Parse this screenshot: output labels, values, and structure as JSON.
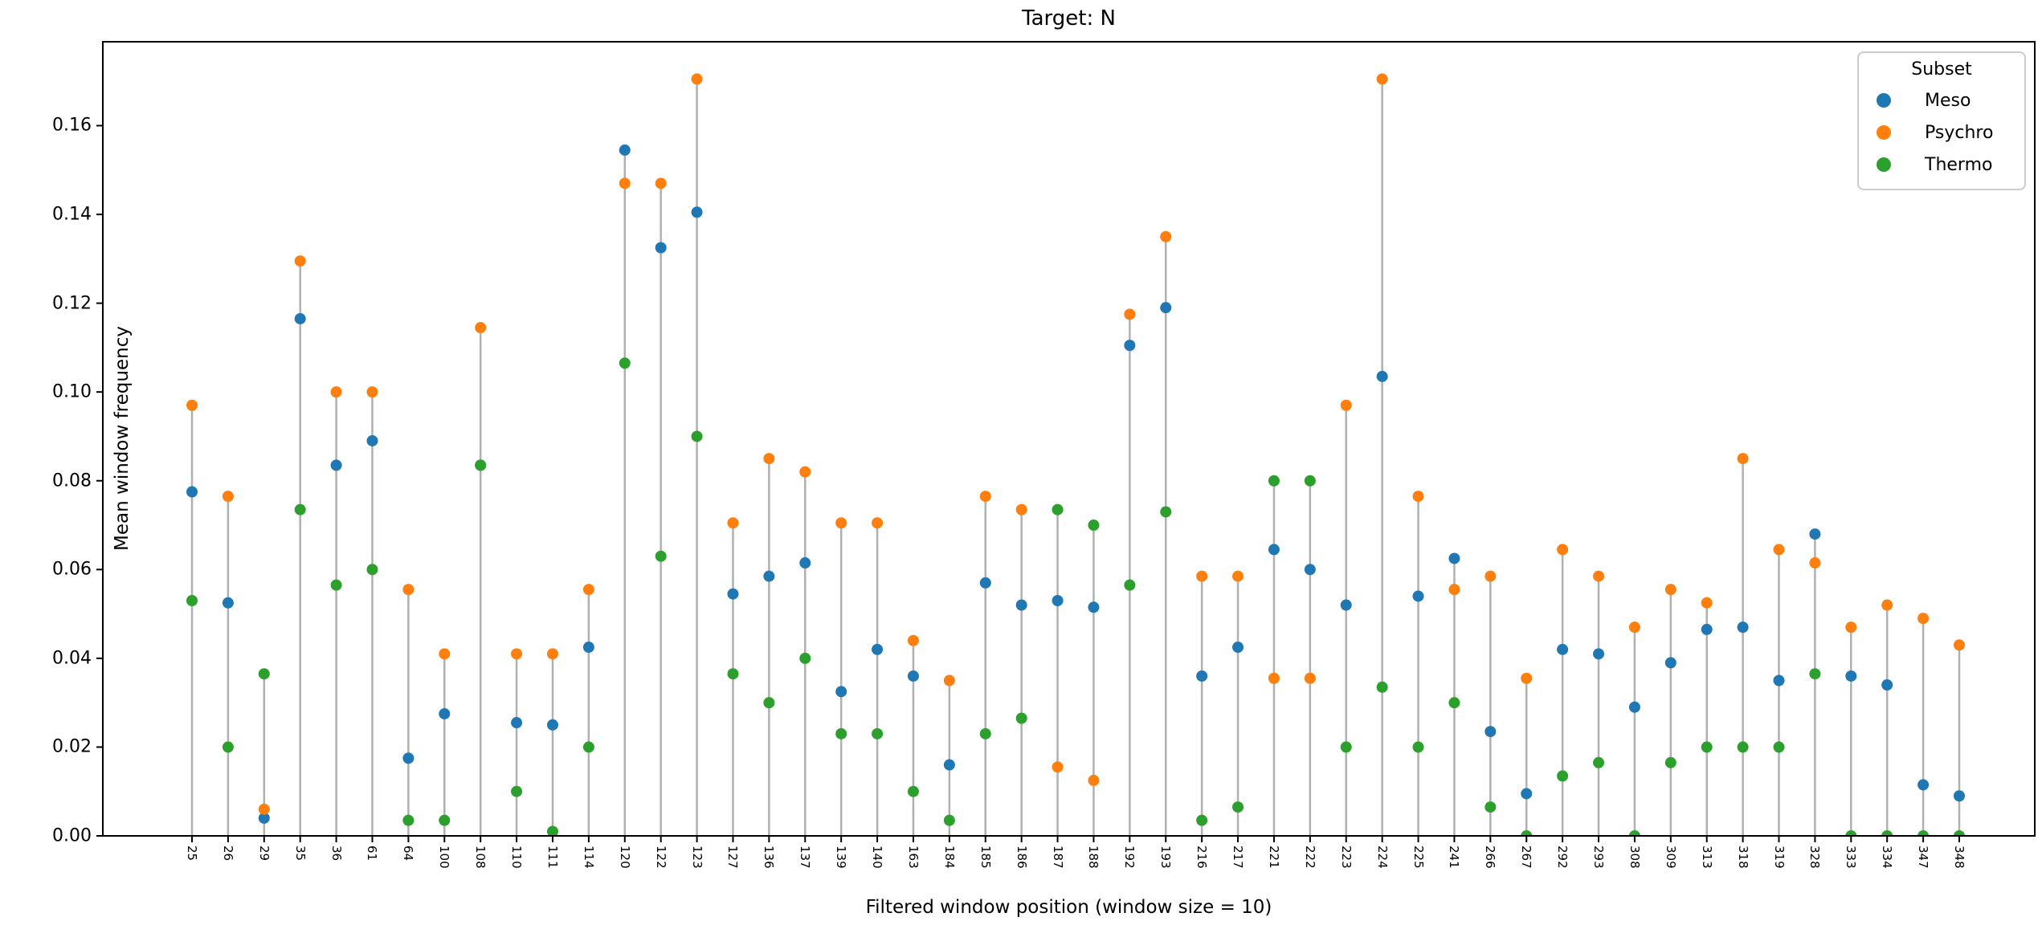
{
  "chart_data": {
    "type": "scatter",
    "subtype": "stem-plot",
    "title": "Target: N",
    "xlabel": "Filtered window position (window size = 10)",
    "ylabel": "Mean window frequency",
    "legend": {
      "title": "Subset",
      "position": "upper right"
    },
    "grid": false,
    "ylim": [
      0,
      0.1789
    ],
    "yticks": [
      0.0,
      0.02,
      0.04,
      0.06,
      0.08,
      0.1,
      0.12,
      0.14,
      0.16
    ],
    "stem_color": "#b0b0b0",
    "spine_color": "#000000",
    "categories": [
      "25",
      "26",
      "29",
      "35",
      "36",
      "61",
      "64",
      "100",
      "108",
      "110",
      "111",
      "114",
      "120",
      "122",
      "123",
      "127",
      "136",
      "137",
      "139",
      "140",
      "163",
      "184",
      "185",
      "186",
      "187",
      "188",
      "192",
      "193",
      "216",
      "217",
      "221",
      "222",
      "223",
      "224",
      "225",
      "241",
      "266",
      "267",
      "292",
      "293",
      "308",
      "309",
      "313",
      "318",
      "319",
      "328",
      "333",
      "334",
      "347",
      "348"
    ],
    "series": [
      {
        "name": "Meso",
        "color": "#1f77b4",
        "values": [
          0.0775,
          0.0525,
          0.004,
          0.1165,
          0.0835,
          0.089,
          0.0175,
          0.0275,
          0.0835,
          0.0255,
          0.025,
          0.0425,
          0.1545,
          0.1325,
          0.1405,
          0.0545,
          0.0585,
          0.0615,
          0.0325,
          0.042,
          0.036,
          0.016,
          0.057,
          0.052,
          0.053,
          0.0515,
          0.1105,
          0.119,
          0.036,
          0.0425,
          0.0645,
          0.06,
          0.052,
          0.1035,
          0.054,
          0.0625,
          0.0235,
          0.0095,
          0.042,
          0.041,
          0.029,
          0.039,
          0.0465,
          0.047,
          0.035,
          0.068,
          0.036,
          0.034,
          0.0115,
          0.009
        ]
      },
      {
        "name": "Psychro",
        "color": "#ff7f0e",
        "values": [
          0.097,
          0.0765,
          0.006,
          0.1295,
          0.1,
          0.1,
          0.0555,
          0.041,
          0.1145,
          0.041,
          0.041,
          0.0555,
          0.147,
          0.147,
          0.1705,
          0.0705,
          0.085,
          0.082,
          0.0705,
          0.0705,
          0.044,
          0.035,
          0.0765,
          0.0735,
          0.0155,
          0.0125,
          0.1175,
          0.135,
          0.0585,
          0.0585,
          0.0355,
          0.0355,
          0.097,
          0.1705,
          0.0765,
          0.0555,
          0.0585,
          0.0355,
          0.0645,
          0.0585,
          0.047,
          0.0555,
          0.0525,
          0.085,
          0.0645,
          0.0615,
          0.047,
          0.052,
          0.049,
          0.043
        ]
      },
      {
        "name": "Thermo",
        "color": "#2ca02c",
        "values": [
          0.053,
          0.02,
          0.0365,
          0.0735,
          0.0565,
          0.06,
          0.0035,
          0.0035,
          0.0835,
          0.01,
          0.001,
          0.02,
          0.1065,
          0.063,
          0.09,
          0.0365,
          0.03,
          0.04,
          0.023,
          0.023,
          0.01,
          0.0035,
          0.023,
          0.0265,
          0.0735,
          0.07,
          0.0565,
          0.073,
          0.0035,
          0.0065,
          0.08,
          0.08,
          0.02,
          0.0335,
          0.02,
          0.03,
          0.0065,
          0,
          0.0135,
          0.0165,
          0,
          0.0165,
          0.02,
          0.02,
          0.02,
          0.0365,
          0,
          0,
          0,
          0
        ]
      }
    ]
  }
}
